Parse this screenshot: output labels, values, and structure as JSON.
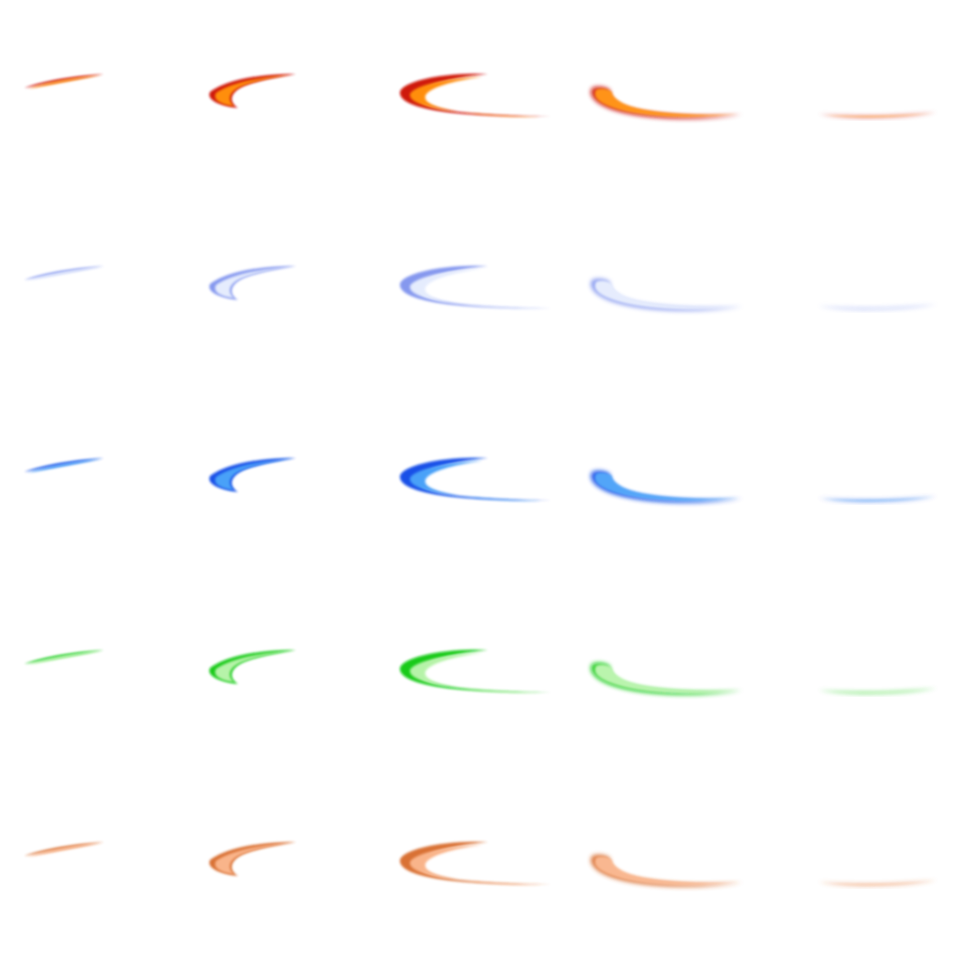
{
  "sheet": {
    "background": "#ffffff",
    "frames_per_row": 5,
    "rows": [
      {
        "name": "fire",
        "outer": "#cc1100",
        "inner": "#ff8800"
      },
      {
        "name": "pale-blue",
        "outer": "#7f93ee",
        "inner": "#e4ebfd"
      },
      {
        "name": "blue",
        "outer": "#0a47e6",
        "inner": "#3f9cf8"
      },
      {
        "name": "green",
        "outer": "#07c80e",
        "inner": "#b3f3a5"
      },
      {
        "name": "orange",
        "outer": "#d76a2c",
        "inner": "#f9b084"
      }
    ]
  }
}
